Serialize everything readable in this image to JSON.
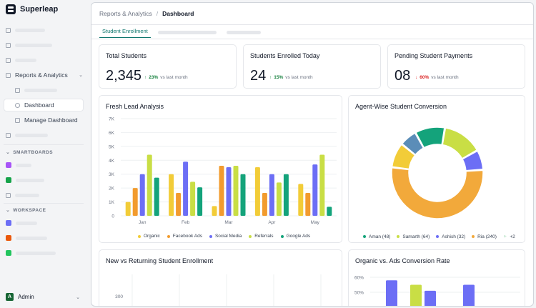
{
  "brand": {
    "name": "Superleap"
  },
  "sidebar": {
    "reports_label": "Reports & Analytics",
    "dashboard_label": "Dashboard",
    "manage_label": "Manage Dashboard",
    "smartboards_label": "SMARTBOARDS",
    "workspace_label": "WORKSPACE",
    "user_initial": "A",
    "user_name": "Admin",
    "colors": {
      "purple": "#a855f7",
      "green": "#16a34a",
      "orange": "#ea580c",
      "green2": "#22c55e"
    }
  },
  "breadcrumb": {
    "parent": "Reports & Analytics",
    "sep": "/",
    "current": "Dashboard"
  },
  "tabs": {
    "active": "Student Enrollment"
  },
  "kpis": [
    {
      "title": "Total Students",
      "value": "2,345",
      "pct": "23%",
      "dir": "up",
      "suffix": "vs last month"
    },
    {
      "title": "Students Enrolled Today",
      "value": "24",
      "pct": "15%",
      "dir": "up",
      "suffix": "vs last month"
    },
    {
      "title": "Pending Student Payments",
      "value": "08",
      "pct": "60%",
      "dir": "down",
      "suffix": "vs last month"
    }
  ],
  "colors": {
    "up": "#15803d",
    "down": "#dc2626",
    "accent": "#0f766e"
  },
  "fresh_lead": {
    "title": "Fresh Lead Analysis"
  },
  "agent_conv": {
    "title": "Agent-Wise Student Conversion",
    "more": "+2"
  },
  "new_vs_returning": {
    "title": "New vs Returning Student Enrollment",
    "ytick": "300"
  },
  "organic_vs_ads": {
    "title": "Organic vs. Ads Conversion Rate",
    "yticks": [
      "60%",
      "50%"
    ]
  },
  "chart_data": [
    {
      "type": "bar",
      "title": "Fresh Lead Analysis",
      "categories": [
        "Jan",
        "Feb",
        "Mar",
        "Apr",
        "May"
      ],
      "yticks": [
        "0",
        "1K",
        "2K",
        "3K",
        "4K",
        "5K",
        "6K",
        "7K"
      ],
      "ylim": [
        0,
        7000
      ],
      "series": [
        {
          "name": "Organic",
          "color": "#f2cc38",
          "values": [
            1000,
            3000,
            700,
            3500,
            2300
          ]
        },
        {
          "name": "Facebook Ads",
          "color": "#f29b2e",
          "values": [
            2000,
            1650,
            3600,
            1650,
            1650
          ]
        },
        {
          "name": "Social Media",
          "color": "#6c6ef5",
          "values": [
            3000,
            3900,
            3500,
            3000,
            3700
          ]
        },
        {
          "name": "Referrals",
          "color": "#c9de45",
          "values": [
            4400,
            2450,
            3600,
            2400,
            4400
          ]
        },
        {
          "name": "Google Ads",
          "color": "#14a37b",
          "values": [
            2750,
            2050,
            3000,
            3000,
            650
          ]
        }
      ]
    },
    {
      "type": "pie",
      "title": "Agent-Wise Student Conversion",
      "slices": [
        {
          "name": "Aman",
          "value": 48,
          "color": "#14a37b"
        },
        {
          "name": "Samarth",
          "value": 64,
          "color": "#c9de45"
        },
        {
          "name": "Ashish",
          "value": 32,
          "color": "#6c6ef5"
        },
        {
          "name": "Ria",
          "value": 240,
          "color": "#f2a93b"
        },
        {
          "name": "",
          "value": 40,
          "color": "#f2cc38"
        },
        {
          "name": "",
          "value": 28,
          "color": "#5b8db8"
        }
      ],
      "legend": [
        {
          "label": "Aman (48)",
          "color": "#14a37b"
        },
        {
          "label": "Samarth (64)",
          "color": "#c9de45"
        },
        {
          "label": "Ashish (32)",
          "color": "#6c6ef5"
        },
        {
          "label": "Ria (240)",
          "color": "#f2a93b"
        }
      ]
    },
    {
      "type": "bar",
      "title": "Organic vs. Ads Conversion Rate",
      "yticks": [
        "60%",
        "50%"
      ],
      "values": [
        58,
        55,
        51,
        55
      ],
      "colors": [
        "#6c6ef5",
        "#c9de45",
        "#6c6ef5",
        "#6c6ef5"
      ]
    }
  ]
}
